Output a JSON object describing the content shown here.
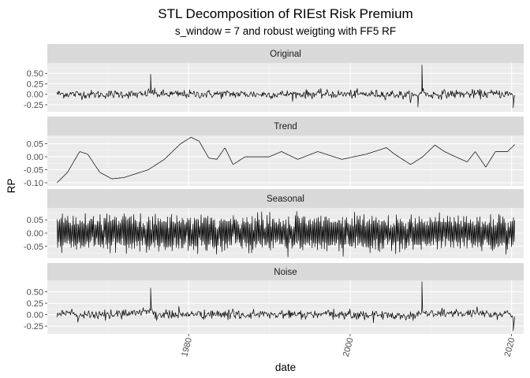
{
  "chart_data": {
    "type": "line",
    "title": "STL Decomposition of RIEst Risk Premium",
    "subtitle": "s_window = 7 and robust weigting with FF5 RF",
    "xlabel": "date",
    "ylabel": "RP",
    "x_ticks": [
      "1980",
      "2000",
      "2020"
    ],
    "x_range": [
      1962.5,
      2021.5
    ],
    "grid": true,
    "facets": [
      {
        "name": "Original",
        "ylim": [
          -0.42,
          0.75
        ],
        "y_ticks": [
          0.5,
          0.25,
          0.0,
          -0.25
        ],
        "y_tick_labels": [
          "0.50",
          "0.25",
          "0.00",
          "-0.25"
        ],
        "approx_points": [
          [
            1963.7,
            0.08
          ],
          [
            1966,
            0.02
          ],
          [
            1969,
            -0.05
          ],
          [
            1972,
            0.05
          ],
          [
            1974.5,
            -0.1
          ],
          [
            1975.3,
            0.48
          ],
          [
            1976,
            0.02
          ],
          [
            1980,
            0.0
          ],
          [
            1985,
            0.05
          ],
          [
            1990,
            -0.02
          ],
          [
            1995,
            0.04
          ],
          [
            2000,
            0.0
          ],
          [
            2005,
            0.03
          ],
          [
            2008.4,
            -0.3
          ],
          [
            2008.9,
            0.7
          ],
          [
            2009.5,
            -0.1
          ],
          [
            2012,
            0.06
          ],
          [
            2015,
            0.03
          ],
          [
            2019.5,
            0.1
          ],
          [
            2020.2,
            -0.32
          ]
        ]
      },
      {
        "name": "Trend",
        "ylim": [
          -0.112,
          0.082
        ],
        "y_ticks": [
          0.05,
          0.0,
          -0.05,
          -0.1
        ],
        "y_tick_labels": [
          "0.05",
          "0.00",
          "-0.05",
          "-0.10"
        ],
        "approx_points": [
          [
            1963.7,
            -0.1
          ],
          [
            1965,
            -0.06
          ],
          [
            1966.5,
            0.02
          ],
          [
            1967.5,
            0.01
          ],
          [
            1969,
            -0.06
          ],
          [
            1970.5,
            -0.085
          ],
          [
            1972,
            -0.08
          ],
          [
            1975,
            -0.05
          ],
          [
            1977,
            -0.01
          ],
          [
            1979,
            0.05
          ],
          [
            1980.3,
            0.075
          ],
          [
            1981.3,
            0.06
          ],
          [
            1982.5,
            -0.005
          ],
          [
            1983.5,
            -0.01
          ],
          [
            1984.5,
            0.035
          ],
          [
            1985.5,
            -0.03
          ],
          [
            1987,
            0.0
          ],
          [
            1990,
            0.0
          ],
          [
            1991.5,
            0.02
          ],
          [
            1993.5,
            -0.01
          ],
          [
            1996,
            0.02
          ],
          [
            1999,
            -0.01
          ],
          [
            2002,
            0.01
          ],
          [
            2004.5,
            0.035
          ],
          [
            2005.5,
            0.01
          ],
          [
            2007.5,
            -0.03
          ],
          [
            2009,
            0.0
          ],
          [
            2010.5,
            0.045
          ],
          [
            2011.7,
            0.02
          ],
          [
            2012.7,
            0.005
          ],
          [
            2014.5,
            -0.02
          ],
          [
            2015.5,
            0.02
          ],
          [
            2016.8,
            -0.04
          ],
          [
            2018,
            0.02
          ],
          [
            2019.5,
            0.02
          ],
          [
            2021,
            0.065
          ]
        ]
      },
      {
        "name": "Seasonal",
        "ylim": [
          -0.095,
          0.095
        ],
        "y_ticks": [
          0.05,
          0.0,
          -0.05
        ],
        "y_tick_labels": [
          "0.05",
          "0.00",
          "-0.05"
        ],
        "approx_points": [
          [
            1963.7,
            -0.06
          ],
          [
            1970,
            0.07
          ],
          [
            1975,
            -0.07
          ],
          [
            1980,
            0.06
          ],
          [
            1985,
            -0.05
          ],
          [
            1990,
            0.05
          ],
          [
            1995,
            -0.05
          ],
          [
            2000,
            0.05
          ],
          [
            2005,
            -0.06
          ],
          [
            2010,
            0.065
          ],
          [
            2015,
            -0.05
          ],
          [
            2020.3,
            0.04
          ]
        ]
      },
      {
        "name": "Noise",
        "ylim": [
          -0.42,
          0.75
        ],
        "y_ticks": [
          0.5,
          0.25,
          0.0,
          -0.25
        ],
        "y_tick_labels": [
          "0.50",
          "0.25",
          "0.00",
          "-0.25"
        ],
        "approx_points": [
          [
            1963.7,
            0.2
          ],
          [
            1966,
            0.0
          ],
          [
            1970,
            -0.05
          ],
          [
            1975.3,
            0.58
          ],
          [
            1976,
            0.0
          ],
          [
            1980,
            0.03
          ],
          [
            1990,
            0.0
          ],
          [
            2000,
            0.0
          ],
          [
            2008.4,
            -0.15
          ],
          [
            2008.9,
            0.72
          ],
          [
            2009.5,
            0.05
          ],
          [
            2012,
            0.25
          ],
          [
            2015,
            0.05
          ],
          [
            2019.5,
            0.15
          ],
          [
            2020.2,
            -0.35
          ]
        ]
      }
    ]
  }
}
